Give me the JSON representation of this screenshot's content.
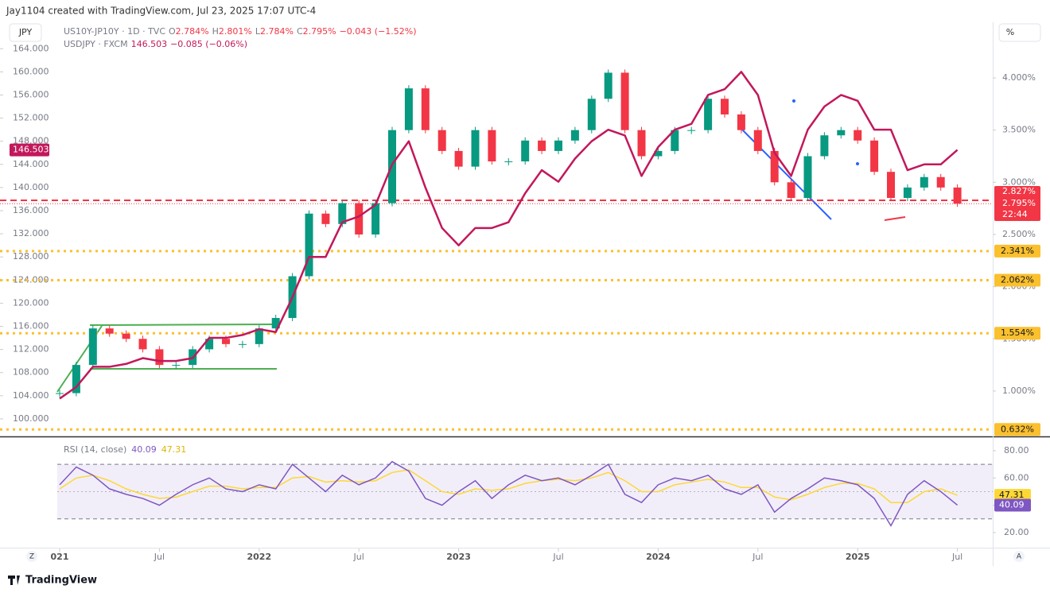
{
  "header": "Jay1104 created with TradingView.com, Jul 23, 2025 17:07 UTC-4",
  "left_scale_button": "JPY",
  "right_scale_button": "%",
  "zoom_button": "Z",
  "auto_button": "A",
  "brand": "TradingView",
  "legend": [
    [
      {
        "text": "US10Y-JP10Y · 1D · TVC",
        "color": "#787b86"
      },
      {
        "text": "O",
        "color": "#787b86"
      },
      {
        "text": "2.784%",
        "color": "#f23645"
      },
      {
        "text": "H",
        "color": "#787b86"
      },
      {
        "text": "2.801%",
        "color": "#f23645"
      },
      {
        "text": "L",
        "color": "#787b86"
      },
      {
        "text": "2.784%",
        "color": "#f23645"
      },
      {
        "text": "C",
        "color": "#787b86"
      },
      {
        "text": "2.795%",
        "color": "#f23645"
      },
      {
        "text": "−0.043 (−1.52%)",
        "color": "#f23645"
      }
    ],
    [
      {
        "text": "USDJPY · FXCM",
        "color": "#787b86"
      },
      {
        "text": "146.503",
        "color": "#c2185b"
      },
      {
        "text": "−0.085 (−0.06%)",
        "color": "#c2185b"
      }
    ]
  ],
  "chart_data": [
    {
      "type": "line",
      "categories": [
        "2021-01",
        "2021-02",
        "2021-03",
        "2021-04",
        "2021-05",
        "2021-06",
        "2021-07",
        "2021-08",
        "2021-09",
        "2021-10",
        "2021-11",
        "2021-12",
        "2022-01",
        "2022-02",
        "2022-03",
        "2022-04",
        "2022-05",
        "2022-06",
        "2022-07",
        "2022-08",
        "2022-09",
        "2022-10",
        "2022-11",
        "2022-12",
        "2023-01",
        "2023-02",
        "2023-03",
        "2023-04",
        "2023-05",
        "2023-06",
        "2023-07",
        "2023-08",
        "2023-09",
        "2023-10",
        "2023-11",
        "2023-12",
        "2024-01",
        "2024-02",
        "2024-03",
        "2024-04",
        "2024-05",
        "2024-06",
        "2024-07",
        "2024-08",
        "2024-09",
        "2024-10",
        "2024-11",
        "2024-12",
        "2025-01",
        "2025-02",
        "2025-03",
        "2025-04",
        "2025-05",
        "2025-06",
        "2025-07"
      ],
      "xticks": [
        {
          "value": "2021-01",
          "label": "021"
        },
        {
          "value": "2021-07",
          "label": "Jul"
        },
        {
          "value": "2022-01",
          "label": "2022"
        },
        {
          "value": "2022-07",
          "label": "Jul"
        },
        {
          "value": "2023-01",
          "label": "2023"
        },
        {
          "value": "2023-07",
          "label": "Jul"
        },
        {
          "value": "2024-01",
          "label": "2024"
        },
        {
          "value": "2024-07",
          "label": "Jul"
        },
        {
          "value": "2025-01",
          "label": "2025"
        },
        {
          "value": "2025-07",
          "label": "Jul"
        }
      ],
      "series": [
        {
          "name": "US10Y-JP10Y",
          "axis": "y2",
          "style": "candles",
          "up_color": "#089981",
          "down_color": "#f23645",
          "values": [
            0.98,
            1.25,
            1.6,
            1.55,
            1.5,
            1.4,
            1.25,
            1.25,
            1.4,
            1.5,
            1.45,
            1.45,
            1.6,
            1.7,
            2.1,
            2.7,
            2.6,
            2.8,
            2.5,
            2.8,
            3.5,
            3.9,
            3.5,
            3.3,
            3.15,
            3.5,
            3.2,
            3.2,
            3.4,
            3.3,
            3.4,
            3.5,
            3.8,
            4.05,
            3.5,
            3.25,
            3.3,
            3.5,
            3.5,
            3.8,
            3.65,
            3.5,
            3.3,
            3.0,
            2.85,
            3.25,
            3.45,
            3.5,
            3.4,
            3.1,
            2.85,
            2.95,
            3.05,
            2.95,
            2.795
          ]
        },
        {
          "name": "USDJPY",
          "axis": "y",
          "style": "line",
          "color": "#c2185b",
          "values": [
            103.5,
            105.5,
            109,
            109,
            109.5,
            110.5,
            110,
            110,
            110.5,
            114,
            114,
            114.5,
            115.5,
            115,
            121,
            128,
            128,
            134,
            135,
            137,
            144,
            148,
            140,
            133,
            130,
            133,
            133,
            134,
            139,
            143,
            141,
            145,
            148,
            150,
            149,
            142,
            147,
            150,
            151,
            156,
            157,
            160,
            156,
            146,
            142,
            150,
            154,
            156,
            155,
            150,
            150,
            143,
            144,
            144,
            146.503
          ]
        }
      ],
      "ylim": [
        97.1,
        168.3
      ],
      "yticks": [
        {
          "value": 100,
          "label": "100.000"
        },
        {
          "value": 104,
          "label": "104.000"
        },
        {
          "value": 108,
          "label": "108.000"
        },
        {
          "value": 112,
          "label": "112.000"
        },
        {
          "value": 116,
          "label": "116.000"
        },
        {
          "value": 120,
          "label": "120.000"
        },
        {
          "value": 124,
          "label": "124.000"
        },
        {
          "value": 128,
          "label": "128.000"
        },
        {
          "value": 132,
          "label": "132.000"
        },
        {
          "value": 136,
          "label": "136.000"
        },
        {
          "value": 140,
          "label": "140.000"
        },
        {
          "value": 144,
          "label": "144.000"
        },
        {
          "value": 148,
          "label": "148.000"
        },
        {
          "value": 152,
          "label": "152.000"
        },
        {
          "value": 156,
          "label": "156.000"
        },
        {
          "value": 160,
          "label": "160.000"
        },
        {
          "value": 164,
          "label": "164.000"
        }
      ],
      "y2lim": [
        0.573,
        4.518
      ],
      "y2ticks": [
        {
          "value": 1,
          "label": "1.000%"
        },
        {
          "value": 1.5,
          "label": "1.500%"
        },
        {
          "value": 2,
          "label": "2.000%"
        },
        {
          "value": 2.5,
          "label": "2.500%"
        },
        {
          "value": 3,
          "label": "3.000%"
        },
        {
          "value": 3.5,
          "label": "3.500%"
        },
        {
          "value": 4,
          "label": "4.000%"
        }
      ],
      "levels": [
        {
          "value": 2.341,
          "label": "2.341%",
          "color": "#fbc02d"
        },
        {
          "value": 2.062,
          "label": "2.062%",
          "color": "#fbc02d"
        },
        {
          "value": 1.554,
          "label": "1.554%",
          "color": "#fbc02d"
        },
        {
          "value": 0.632,
          "label": "0.632%",
          "color": "#fbc02d"
        }
      ],
      "last_price": {
        "value": 2.827,
        "label": "2.827%",
        "color": "#f23645"
      },
      "close_price": {
        "value": 2.795,
        "label": "2.795%"
      },
      "countdown": "22:44",
      "left_last": {
        "value": 146.503,
        "label": "146.503",
        "color": "#c2185b"
      }
    },
    {
      "type": "line",
      "title": "RSI (14, close)",
      "series": [
        {
          "name": "RSI",
          "color": "#7e57c2",
          "value_label": "40.09",
          "values": [
            55,
            68,
            62,
            52,
            48,
            45,
            40,
            48,
            55,
            60,
            52,
            50,
            55,
            52,
            70,
            60,
            50,
            62,
            55,
            60,
            72,
            65,
            45,
            40,
            50,
            58,
            45,
            55,
            62,
            58,
            60,
            55,
            62,
            70,
            48,
            42,
            55,
            60,
            58,
            62,
            52,
            48,
            55,
            35,
            45,
            52,
            60,
            58,
            55,
            45,
            25,
            48,
            58,
            50,
            40.09
          ]
        },
        {
          "name": "RSI-based MA",
          "color": "#fdd835",
          "value_label": "47.31",
          "values": [
            52,
            60,
            62,
            58,
            52,
            48,
            45,
            46,
            50,
            54,
            54,
            52,
            53,
            53,
            60,
            61,
            57,
            58,
            57,
            58,
            64,
            66,
            58,
            50,
            48,
            52,
            51,
            52,
            56,
            58,
            59,
            58,
            60,
            64,
            58,
            50,
            50,
            55,
            57,
            59,
            57,
            53,
            53,
            46,
            44,
            48,
            53,
            56,
            56,
            52,
            42,
            42,
            50,
            52,
            47.31
          ]
        }
      ],
      "ylim": [
        9.5,
        88.7
      ],
      "yticks": [
        {
          "value": 20,
          "label": "20.00"
        },
        {
          "value": 40,
          "label": "40.00"
        },
        {
          "value": 60,
          "label": "60.00"
        },
        {
          "value": 80,
          "label": "80.00"
        }
      ],
      "bands": [
        30,
        70
      ],
      "band_color": "#7e57c2"
    }
  ]
}
